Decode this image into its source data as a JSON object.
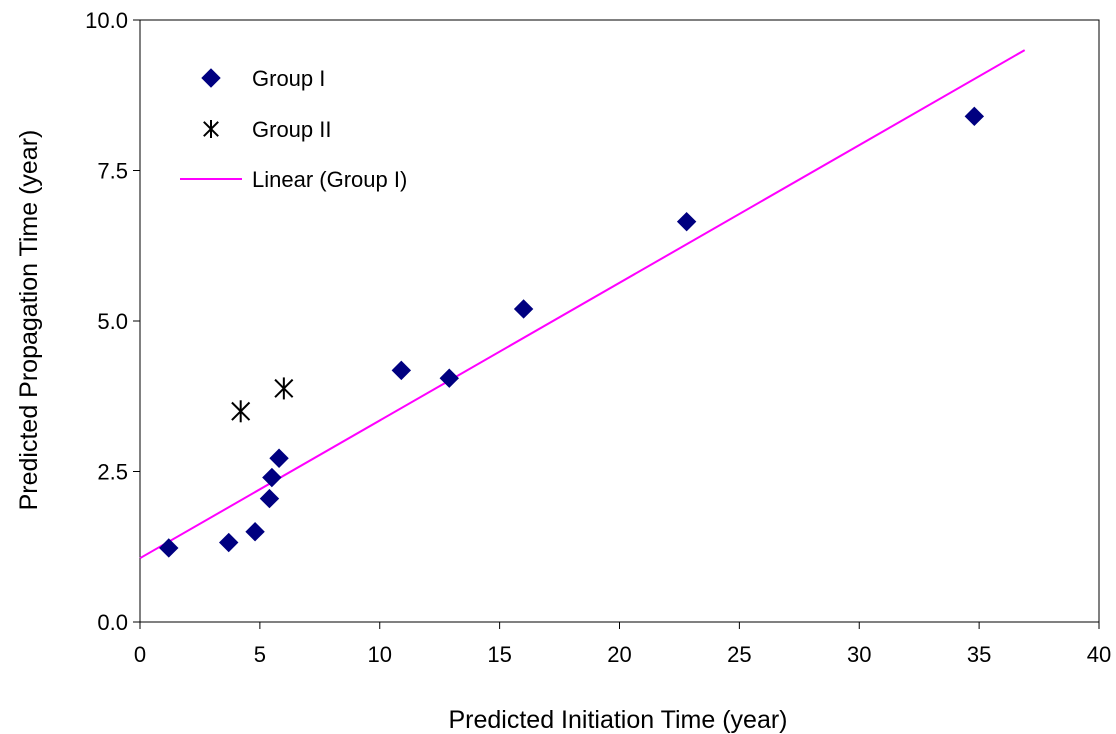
{
  "chart_data": {
    "type": "scatter",
    "xlabel": "Predicted Initiation Time (year)",
    "ylabel": "Predicted Propagation Time (year)",
    "xlim": [
      0,
      40
    ],
    "ylim": [
      0,
      10
    ],
    "x_ticks": [
      "0",
      "5",
      "10",
      "15",
      "20",
      "25",
      "30",
      "35",
      "40"
    ],
    "y_ticks": [
      "0.0",
      "2.5",
      "5.0",
      "7.5",
      "10.0"
    ],
    "grid": false,
    "legend_position": "top-left",
    "series": [
      {
        "name": "Group I",
        "marker": "diamond",
        "color": "#000080",
        "points": [
          {
            "x": 1.2,
            "y": 1.23
          },
          {
            "x": 3.7,
            "y": 1.32
          },
          {
            "x": 4.8,
            "y": 1.5
          },
          {
            "x": 5.4,
            "y": 2.05
          },
          {
            "x": 5.5,
            "y": 2.4
          },
          {
            "x": 5.8,
            "y": 2.72
          },
          {
            "x": 10.9,
            "y": 4.18
          },
          {
            "x": 12.9,
            "y": 4.05
          },
          {
            "x": 16.0,
            "y": 5.2
          },
          {
            "x": 22.8,
            "y": 6.65
          },
          {
            "x": 34.8,
            "y": 8.4
          }
        ]
      },
      {
        "name": "Group II",
        "marker": "asterisk",
        "color": "#000000",
        "points": [
          {
            "x": 4.2,
            "y": 3.5
          },
          {
            "x": 6.0,
            "y": 3.88
          }
        ]
      },
      {
        "name": "Linear (Group I)",
        "marker": "line",
        "color": "#ff00ff",
        "points": [
          {
            "x": 0,
            "y": 1.06
          },
          {
            "x": 36.9,
            "y": 9.5
          }
        ]
      }
    ]
  }
}
